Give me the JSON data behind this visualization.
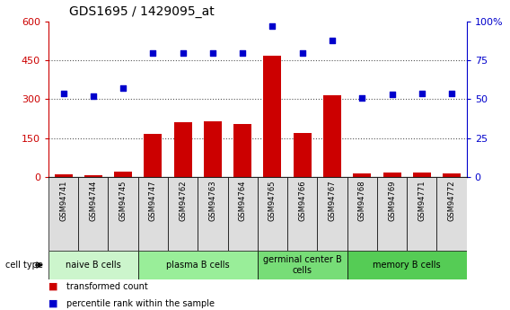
{
  "title": "GDS1695 / 1429095_at",
  "samples": [
    "GSM94741",
    "GSM94744",
    "GSM94745",
    "GSM94747",
    "GSM94762",
    "GSM94763",
    "GSM94764",
    "GSM94765",
    "GSM94766",
    "GSM94767",
    "GSM94768",
    "GSM94769",
    "GSM94771",
    "GSM94772"
  ],
  "bar_values": [
    8,
    7,
    18,
    165,
    210,
    215,
    205,
    470,
    170,
    315,
    12,
    15,
    15,
    12
  ],
  "dot_values": [
    54,
    52,
    57,
    80,
    80,
    80,
    80,
    97,
    80,
    88,
    51,
    53,
    54,
    54
  ],
  "ylim_left": [
    0,
    600
  ],
  "ylim_right": [
    0,
    100
  ],
  "yticks_left": [
    0,
    150,
    300,
    450,
    600
  ],
  "yticks_right": [
    0,
    25,
    50,
    75,
    100
  ],
  "cell_groups": [
    {
      "label": "naive B cells",
      "start": 0,
      "end": 3,
      "color": "#ccf5cc"
    },
    {
      "label": "plasma B cells",
      "start": 3,
      "end": 7,
      "color": "#99ee99"
    },
    {
      "label": "germinal center B\ncells",
      "start": 7,
      "end": 10,
      "color": "#77dd77"
    },
    {
      "label": "memory B cells",
      "start": 10,
      "end": 14,
      "color": "#55cc55"
    }
  ],
  "bar_color": "#cc0000",
  "dot_color": "#0000cc",
  "left_axis_color": "#cc0000",
  "right_axis_color": "#0000cc",
  "grid_color": "#555555",
  "sample_bg_color": "#dddddd",
  "legend_red_label": "transformed count",
  "legend_blue_label": "percentile rank within the sample",
  "cell_type_label": "cell type"
}
